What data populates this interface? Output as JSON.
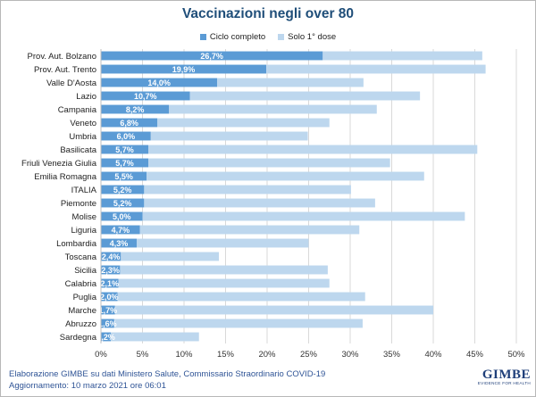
{
  "title": "Vaccinazioni negli over 80",
  "legend": [
    {
      "label": "Ciclo completo",
      "color": "#5b9bd5"
    },
    {
      "label": "Solo 1° dose",
      "color": "#bdd7ee"
    }
  ],
  "chart_data": {
    "type": "bar",
    "orientation": "horizontal",
    "stacked": true,
    "categories": [
      "Prov. Aut. Bolzano",
      "Prov. Aut. Trento",
      "Valle D'Aosta",
      "Lazio",
      "Campania",
      "Veneto",
      "Umbria",
      "Basilicata",
      "Friuli Venezia Giulia",
      "Emilia Romagna",
      "ITALIA",
      "Piemonte",
      "Molise",
      "Liguria",
      "Lombardia",
      "Toscana",
      "Sicilia",
      "Calabria",
      "Puglia",
      "Marche",
      "Abruzzo",
      "Sardegna"
    ],
    "series": [
      {
        "name": "Ciclo completo",
        "color": "#5b9bd5",
        "values": [
          26.7,
          19.9,
          14.0,
          10.7,
          8.2,
          6.8,
          6.0,
          5.7,
          5.7,
          5.5,
          5.2,
          5.2,
          5.0,
          4.7,
          4.3,
          2.4,
          2.3,
          2.1,
          2.0,
          1.7,
          1.6,
          1.2
        ]
      },
      {
        "name": "Solo 1° dose",
        "color": "#bdd7ee",
        "values": [
          19.2,
          26.4,
          17.6,
          27.7,
          25.0,
          20.7,
          18.9,
          39.6,
          29.1,
          33.4,
          24.9,
          27.8,
          38.8,
          26.4,
          20.7,
          11.8,
          25.0,
          25.4,
          29.8,
          38.3,
          29.9,
          10.6
        ]
      }
    ],
    "data_labels": [
      "26,7%",
      "19,9%",
      "14,0%",
      "10,7%",
      "8,2%",
      "6,8%",
      "6,0%",
      "5,7%",
      "5,7%",
      "5,5%",
      "5,2%",
      "5,2%",
      "5,0%",
      "4,7%",
      "4,3%",
      "2,4%",
      "2,3%",
      "2,1%",
      "2,0%",
      "1,7%",
      "1,6%",
      "1,2%"
    ],
    "xlim": [
      0,
      50
    ],
    "xticks": [
      "0%",
      "5%",
      "10%",
      "15%",
      "20%",
      "25%",
      "30%",
      "35%",
      "40%",
      "45%",
      "50%"
    ],
    "grid": true,
    "legend_position": "top"
  },
  "footer": {
    "line1": "Elaborazione GIMBE su dati Ministero Salute, Commissario Straordinario COVID-19",
    "line2": "Aggiornamento: 10 marzo 2021 ore 06:01"
  },
  "logo": {
    "main": "GIMBE",
    "sub": "EVIDENCE FOR HEALTH"
  }
}
